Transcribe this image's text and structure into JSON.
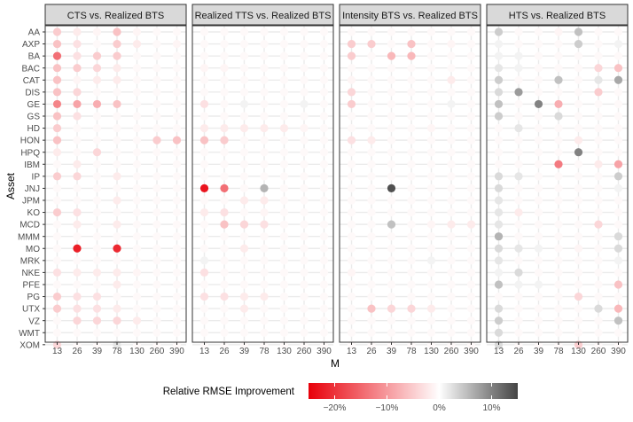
{
  "chart_data": {
    "type": "heatmap",
    "title": "",
    "ylabel": "Asset",
    "xlabel": "M",
    "x": [
      "13",
      "26",
      "39",
      "78",
      "130",
      "260",
      "390"
    ],
    "y": [
      "AA",
      "AXP",
      "BA",
      "BAC",
      "CAT",
      "DIS",
      "GE",
      "GS",
      "HD",
      "HON",
      "HPQ",
      "IBM",
      "IP",
      "JNJ",
      "JPM",
      "KO",
      "MCD",
      "MMM",
      "MO",
      "MRK",
      "NKE",
      "PFE",
      "PG",
      "UTX",
      "VZ",
      "WMT",
      "XOM"
    ],
    "value_unit": "percent",
    "legend": {
      "title": "Relative RMSE Improvement",
      "min": -25,
      "max": 15,
      "tick_values": [
        -20,
        -10,
        0,
        10
      ],
      "tick_labels": [
        "−20%",
        "−10%",
        "0%",
        "10%"
      ],
      "low_color": "#e8000a",
      "mid_color": "#ffffff",
      "high_color": "#444444",
      "position": "bottom"
    },
    "panels": [
      {
        "title": "CTS  vs.  Realized BTS",
        "values": [
          [
            -5,
            -2,
            -1,
            -6,
            -1,
            -0.6,
            -0.6
          ],
          [
            -6,
            -3,
            -0.6,
            -5,
            -2,
            -0.6,
            -1
          ],
          [
            -14,
            -3,
            -5,
            -5,
            -0.6,
            -0.6,
            -0.6
          ],
          [
            -6,
            -5,
            -4,
            -2,
            -0.6,
            -0.6,
            -0.6
          ],
          [
            -6,
            -1,
            -2,
            -2,
            -0.6,
            -0.6,
            -0.6
          ],
          [
            -6,
            -4,
            -0.6,
            -0.6,
            -0.6,
            -0.6,
            -0.6
          ],
          [
            -12,
            -9,
            -8,
            -6,
            -0.6,
            -0.6,
            -0.6
          ],
          [
            -6,
            -3,
            -0.6,
            -0.6,
            -0.6,
            -0.6,
            -0.6
          ],
          [
            -5,
            -0.6,
            -0.6,
            -0.6,
            -0.6,
            -0.6,
            -0.6
          ],
          [
            -6,
            -0.6,
            -0.6,
            -0.6,
            -0.6,
            -5,
            -6
          ],
          [
            -2,
            -0.6,
            -4,
            -0.6,
            -0.6,
            -0.6,
            -0.6
          ],
          [
            -0.6,
            -2,
            -0.6,
            -0.6,
            -0.6,
            -0.6,
            -0.6
          ],
          [
            -5,
            -4,
            -0.6,
            -2,
            -0.6,
            -0.6,
            -0.6
          ],
          [
            -0.6,
            -0.6,
            -0.6,
            -0.6,
            -0.6,
            -0.6,
            -0.6
          ],
          [
            -0.6,
            -0.6,
            -0.6,
            -2,
            -0.6,
            -0.6,
            -0.6
          ],
          [
            -5,
            -3,
            -0.6,
            -0.6,
            -0.6,
            -0.6,
            -0.6
          ],
          [
            -0.6,
            -2,
            -0.6,
            -2,
            -0.6,
            -0.6,
            -0.6
          ],
          [
            -0.6,
            -0.6,
            -0.6,
            -0.6,
            -0.6,
            -0.6,
            -0.6
          ],
          [
            -0.6,
            -22,
            -0.6,
            -21,
            -0.6,
            -0.6,
            -0.6
          ],
          [
            -0.6,
            -0.6,
            -0.6,
            -0.6,
            -0.6,
            -0.6,
            -0.6
          ],
          [
            -3,
            -2,
            -2,
            -2,
            -1,
            -0.6,
            -0.6
          ],
          [
            -0.6,
            -0.6,
            -0.6,
            -2,
            -0.6,
            -0.6,
            -0.6
          ],
          [
            -5,
            -3,
            -3,
            -0.6,
            -0.6,
            -0.6,
            -0.6
          ],
          [
            -5,
            -3,
            -3,
            -2,
            -0.6,
            -0.6,
            -0.6
          ],
          [
            -0.6,
            -4,
            -4,
            -4,
            -2,
            -0.6,
            -0.6
          ],
          [
            -0.6,
            -0.6,
            -0.6,
            -0.6,
            -0.6,
            -0.6,
            -0.6
          ],
          [
            -4,
            -0.6,
            -0.6,
            2,
            -0.6,
            -0.6,
            -0.6
          ]
        ]
      },
      {
        "title": "Realized TTS  vs.  Realized BTS",
        "values": [
          [
            -0.6,
            -0.6,
            -0.6,
            -0.6,
            -0.6,
            -0.6,
            -0.6
          ],
          [
            -0.6,
            -0.6,
            -0.6,
            -0.6,
            -0.6,
            -0.6,
            -0.6
          ],
          [
            -0.6,
            -0.6,
            -0.6,
            -0.6,
            -0.6,
            -0.6,
            -0.6
          ],
          [
            -1,
            -1,
            -0.6,
            -0.6,
            -0.6,
            -0.6,
            -0.6
          ],
          [
            -0.6,
            -0.6,
            -0.6,
            -0.6,
            -0.6,
            -0.6,
            -0.6
          ],
          [
            -0.6,
            -0.6,
            -0.6,
            -0.6,
            -0.6,
            -0.6,
            -0.6
          ],
          [
            -3,
            -0.6,
            1,
            -0.6,
            -0.6,
            1,
            -0.6
          ],
          [
            -0.6,
            -0.6,
            -0.6,
            -0.6,
            -0.6,
            -0.6,
            -0.6
          ],
          [
            -2,
            -2,
            -2,
            -2,
            -2,
            -1,
            -0.6
          ],
          [
            -6,
            -5,
            -0.6,
            -0.6,
            -0.6,
            -0.6,
            -0.6
          ],
          [
            -0.6,
            -0.6,
            -0.6,
            -0.6,
            -0.6,
            -0.6,
            -0.6
          ],
          [
            -0.6,
            -0.6,
            -0.6,
            -0.6,
            -0.6,
            -0.6,
            -0.6
          ],
          [
            -0.6,
            -0.6,
            -0.6,
            -0.6,
            -0.6,
            -0.6,
            -0.6
          ],
          [
            -23,
            -14,
            -0.6,
            6,
            -0.6,
            -0.6,
            -0.6
          ],
          [
            -0.6,
            -0.6,
            -2,
            -2,
            -0.6,
            -0.6,
            -0.6
          ],
          [
            -2,
            -3,
            -0.6,
            -1,
            -0.6,
            -0.6,
            -0.6
          ],
          [
            -0.6,
            -6,
            -4,
            -3,
            -0.6,
            -0.6,
            -0.6
          ],
          [
            -0.6,
            -0.6,
            -0.6,
            -0.6,
            -0.6,
            -0.6,
            -0.6
          ],
          [
            -0.6,
            -0.6,
            -2,
            -0.6,
            -0.6,
            -0.6,
            -0.6
          ],
          [
            1,
            -0.6,
            -0.6,
            -0.6,
            -0.6,
            -0.6,
            -0.6
          ],
          [
            -3,
            -0.6,
            -0.6,
            -0.6,
            -0.6,
            -0.6,
            -0.6
          ],
          [
            -0.6,
            -0.6,
            -0.6,
            -0.6,
            -0.6,
            -0.6,
            -0.6
          ],
          [
            -3,
            -3,
            -2,
            -2,
            -0.6,
            -0.6,
            -0.6
          ],
          [
            -0.6,
            -0.6,
            -2,
            -0.6,
            -0.6,
            -0.6,
            -0.6
          ],
          [
            -0.6,
            -0.6,
            -0.6,
            -0.6,
            -0.6,
            -0.6,
            -0.6
          ],
          [
            -0.6,
            -0.6,
            -0.6,
            -0.6,
            -0.6,
            -0.6,
            -0.6
          ],
          [
            -0.6,
            -0.6,
            -0.6,
            -0.6,
            -0.6,
            -0.6,
            -0.6
          ]
        ]
      },
      {
        "title": "Intensity BTS  vs.  Realized BTS",
        "values": [
          [
            -0.6,
            -0.6,
            -0.6,
            -0.6,
            -0.6,
            -0.6,
            -0.6
          ],
          [
            -5,
            -5,
            -0.6,
            -6,
            -0.6,
            -1,
            -0.6
          ],
          [
            -5,
            -0.6,
            -7,
            -7,
            -0.6,
            -0.6,
            -0.6
          ],
          [
            -0.6,
            -0.6,
            -0.6,
            -0.6,
            -0.6,
            -0.6,
            -0.6
          ],
          [
            -1,
            -0.6,
            -0.6,
            -0.6,
            -0.6,
            -2,
            -0.6
          ],
          [
            -4,
            -0.6,
            -0.6,
            -0.6,
            -0.6,
            -0.6,
            -0.6
          ],
          [
            -5,
            -0.6,
            -0.6,
            -0.6,
            -0.6,
            1,
            -0.6
          ],
          [
            -0.6,
            -0.6,
            -0.6,
            -0.6,
            -0.6,
            -0.6,
            -0.6
          ],
          [
            -0.6,
            -0.6,
            -0.6,
            -0.6,
            -1,
            -0.6,
            -0.6
          ],
          [
            -3,
            -2,
            -0.6,
            -0.6,
            -0.6,
            -0.6,
            -0.6
          ],
          [
            -0.6,
            -0.6,
            -0.6,
            -0.6,
            -0.6,
            -0.6,
            -0.6
          ],
          [
            -0.6,
            -0.6,
            -0.6,
            -0.6,
            -0.6,
            -0.6,
            -0.6
          ],
          [
            -0.6,
            -0.6,
            -0.6,
            -0.6,
            -0.6,
            -0.6,
            -0.6
          ],
          [
            -0.6,
            -0.6,
            14,
            -0.6,
            -0.6,
            -0.6,
            -0.6
          ],
          [
            -0.6,
            -0.6,
            -0.6,
            -0.6,
            -0.6,
            -0.6,
            -0.6
          ],
          [
            -0.6,
            -0.6,
            -0.6,
            -0.6,
            -0.6,
            -0.6,
            -0.6
          ],
          [
            -0.6,
            -0.6,
            5,
            -0.6,
            -1,
            -2,
            -2
          ],
          [
            -0.6,
            -0.6,
            -0.6,
            -0.6,
            -0.6,
            -0.6,
            -0.6
          ],
          [
            -0.6,
            -0.6,
            -0.6,
            -0.6,
            -0.6,
            -0.6,
            -0.6
          ],
          [
            -0.6,
            -0.6,
            -0.6,
            -0.6,
            1,
            -0.6,
            -0.6
          ],
          [
            -1,
            -0.6,
            -0.6,
            -0.6,
            -0.6,
            -0.6,
            -0.6
          ],
          [
            -0.6,
            -0.6,
            -0.6,
            -0.6,
            -0.6,
            -0.6,
            -0.6
          ],
          [
            -0.6,
            -0.6,
            -0.6,
            -0.6,
            -0.6,
            -0.6,
            -0.6
          ],
          [
            -0.6,
            -6,
            -4,
            -4,
            -2,
            -0.6,
            -0.6
          ],
          [
            -0.6,
            -0.6,
            -0.6,
            -0.6,
            -0.6,
            -0.6,
            -0.6
          ],
          [
            -0.6,
            -0.6,
            -0.6,
            -0.6,
            -0.6,
            -0.6,
            -0.6
          ],
          [
            -0.6,
            -0.6,
            -0.6,
            -0.6,
            -0.6,
            -0.6,
            -0.6
          ]
        ]
      },
      {
        "title": "HTS  vs.  Realized BTS",
        "values": [
          [
            4,
            -0.6,
            -0.6,
            -1,
            5,
            -0.6,
            -0.6
          ],
          [
            1,
            -0.6,
            -0.6,
            -0.6,
            4,
            -0.6,
            1
          ],
          [
            1,
            1,
            -0.6,
            -0.6,
            -0.6,
            -0.6,
            -0.6
          ],
          [
            2,
            1,
            -0.6,
            -0.6,
            -0.6,
            -4,
            -6
          ],
          [
            4,
            -0.6,
            -0.6,
            5,
            -0.6,
            2,
            7
          ],
          [
            3,
            8,
            -0.6,
            -0.6,
            -0.6,
            -5,
            -0.6
          ],
          [
            5,
            -0.6,
            10,
            -8,
            -0.6,
            -0.6,
            -0.6
          ],
          [
            4,
            -0.6,
            -0.6,
            3,
            -0.6,
            -0.6,
            -0.6
          ],
          [
            -0.6,
            2,
            -0.6,
            -0.6,
            -0.6,
            -0.6,
            -0.6
          ],
          [
            -0.6,
            -0.6,
            -0.6,
            -0.6,
            -2,
            -0.6,
            -0.6
          ],
          [
            -0.6,
            -0.6,
            -0.6,
            -0.6,
            10,
            -0.6,
            -0.6
          ],
          [
            -0.6,
            -0.6,
            -0.6,
            -13,
            -0.6,
            -2,
            -9
          ],
          [
            3,
            2,
            -0.6,
            -0.6,
            -0.6,
            -0.6,
            4
          ],
          [
            3,
            -0.6,
            -0.6,
            -0.6,
            -0.6,
            -0.6,
            1
          ],
          [
            2,
            -0.6,
            -0.6,
            -0.6,
            -0.6,
            -0.6,
            -0.6
          ],
          [
            2,
            -2,
            -0.6,
            -0.6,
            -0.6,
            -0.6,
            -0.6
          ],
          [
            2,
            -0.6,
            -0.6,
            -0.6,
            -0.6,
            -4,
            -0.6
          ],
          [
            6,
            -0.6,
            -0.6,
            -0.6,
            -0.6,
            -0.6,
            3
          ],
          [
            3,
            2,
            1,
            -0.6,
            -1,
            -0.6,
            3
          ],
          [
            2,
            -0.6,
            -0.6,
            -0.6,
            -0.6,
            -0.6,
            1
          ],
          [
            1,
            3,
            -0.6,
            -0.6,
            -0.6,
            -0.6,
            -0.6
          ],
          [
            5,
            1,
            1,
            -0.6,
            -0.6,
            -0.6,
            -6
          ],
          [
            -0.6,
            -0.6,
            -0.6,
            -0.6,
            -4,
            -0.6,
            -0.6
          ],
          [
            3,
            -0.6,
            -0.6,
            -0.6,
            -0.6,
            3,
            -7
          ],
          [
            4,
            -0.6,
            -0.6,
            -0.6,
            -0.6,
            -0.6,
            5
          ],
          [
            3,
            -0.6,
            -0.6,
            -0.6,
            -0.6,
            -0.6,
            -0.6
          ],
          [
            3,
            -0.6,
            -0.6,
            -0.6,
            -5,
            -0.6,
            -0.6
          ]
        ]
      }
    ]
  }
}
